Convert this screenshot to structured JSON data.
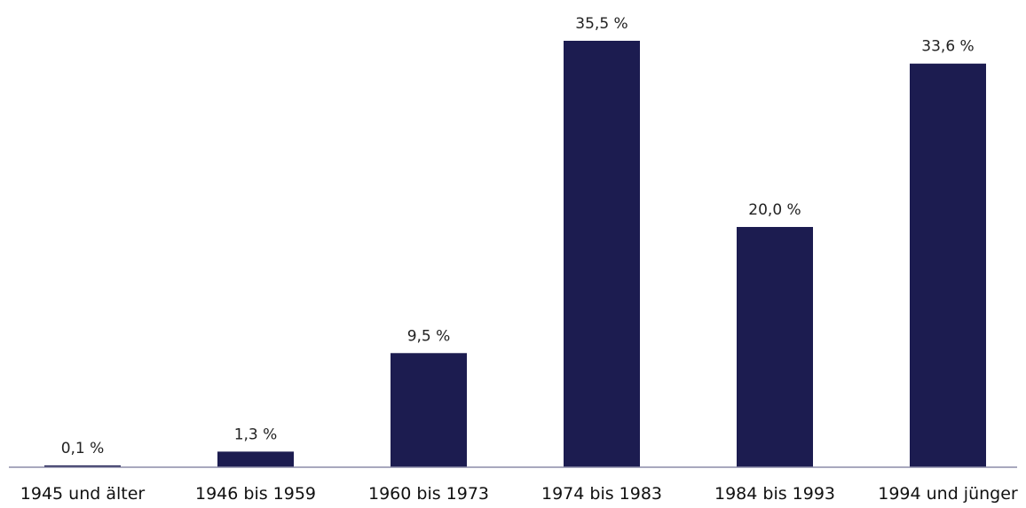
{
  "colors": {
    "bar": "#1c1c50",
    "axis": "#8c8ca8",
    "background": "#ffffff"
  },
  "chart_data": {
    "type": "bar",
    "title": "",
    "xlabel": "",
    "ylabel": "",
    "categories": [
      "1945 und älter",
      "1946 bis 1959",
      "1960 bis 1973",
      "1974 bis 1983",
      "1984 bis 1993",
      "1994 und jünger"
    ],
    "values": [
      0.1,
      1.3,
      9.5,
      35.5,
      20.0,
      33.6
    ],
    "value_labels": [
      "0,1 %",
      "1,3 %",
      "9,5 %",
      "35,5 %",
      "20,0 %",
      "33,6 %"
    ],
    "ylim": [
      0,
      35.5
    ],
    "grid": false,
    "legend": "none"
  }
}
